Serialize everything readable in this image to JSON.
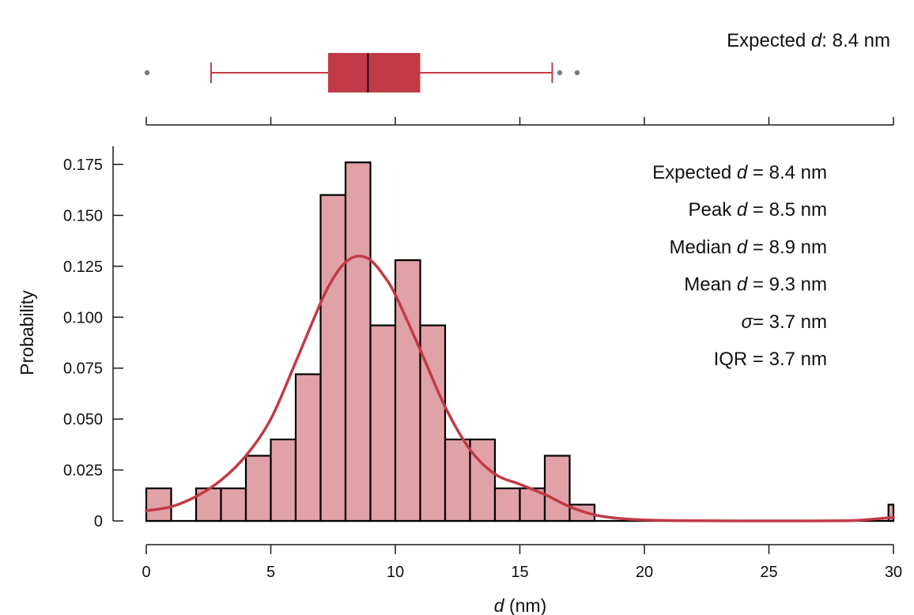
{
  "colors": {
    "accent": "#c23a47",
    "bar_fill": "#e0a1a7",
    "outlier": "#7a7a7a"
  },
  "chart_data": [
    {
      "type": "box",
      "orientation": "horizontal",
      "stats": {
        "whisker_low": 2.6,
        "q1": 7.3,
        "median": 8.9,
        "q3": 11.0,
        "whisker_high": 16.3
      },
      "outliers": [
        0.0,
        16.6,
        17.3
      ],
      "annotation": {
        "label": "Expected",
        "variable": "d",
        "value": ": 8.4 nm"
      },
      "xlim": [
        0,
        30
      ],
      "xticks": [
        0,
        5,
        10,
        15,
        20,
        25,
        30
      ]
    },
    {
      "type": "bar",
      "subtype": "histogram_with_kde",
      "xlabel_var": "d",
      "xlabel_unit": " (nm)",
      "ylabel": "Probability",
      "xlim": [
        0,
        30
      ],
      "ylim": [
        0,
        0.18
      ],
      "xticks": [
        "0",
        "5",
        "10",
        "15",
        "20",
        "25",
        "30"
      ],
      "yticks": [
        "0",
        "0.025",
        "0.050",
        "0.075",
        "0.100",
        "0.125",
        "0.150",
        "0.175"
      ],
      "bin_width": 1,
      "bins": [
        {
          "x": 0,
          "value": 0.016
        },
        {
          "x": 1,
          "value": 0
        },
        {
          "x": 2,
          "value": 0.016
        },
        {
          "x": 3,
          "value": 0.016
        },
        {
          "x": 4,
          "value": 0.032
        },
        {
          "x": 5,
          "value": 0.04
        },
        {
          "x": 6,
          "value": 0.072
        },
        {
          "x": 7,
          "value": 0.16
        },
        {
          "x": 8,
          "value": 0.176
        },
        {
          "x": 9,
          "value": 0.096
        },
        {
          "x": 10,
          "value": 0.128
        },
        {
          "x": 11,
          "value": 0.096
        },
        {
          "x": 12,
          "value": 0.04
        },
        {
          "x": 13,
          "value": 0.04
        },
        {
          "x": 14,
          "value": 0.016
        },
        {
          "x": 15,
          "value": 0.016
        },
        {
          "x": 16,
          "value": 0.032
        },
        {
          "x": 17,
          "value": 0.008
        },
        {
          "x": 29.8,
          "value": 0.008,
          "width": 0.2
        }
      ],
      "kde": {
        "x": [
          0,
          1,
          2,
          3,
          4,
          5,
          6,
          7,
          7.5,
          8,
          8.5,
          9,
          9.5,
          10,
          11,
          12,
          13,
          14,
          15,
          16,
          17,
          18,
          19,
          20,
          22,
          25,
          28,
          29,
          30
        ],
        "y": [
          0.005,
          0.007,
          0.012,
          0.02,
          0.032,
          0.05,
          0.078,
          0.107,
          0.119,
          0.127,
          0.13,
          0.128,
          0.121,
          0.111,
          0.084,
          0.056,
          0.035,
          0.023,
          0.018,
          0.013,
          0.007,
          0.003,
          0.0012,
          0.0005,
          0.0001,
          0,
          0.0001,
          0.0007,
          0.0018
        ]
      },
      "stats_text": [
        {
          "label": "Expected",
          "var": "d",
          "value": " = 8.4 nm"
        },
        {
          "label": "Peak",
          "var": "d",
          "value": " = 8.5 nm"
        },
        {
          "label": "Median",
          "var": "d",
          "value": " = 8.9 nm"
        },
        {
          "label": "Mean",
          "var": "d",
          "value": " = 9.3 nm"
        },
        {
          "label": "",
          "var": "σ",
          "value": "= 3.7 nm"
        },
        {
          "label": "IQR",
          "var": "",
          "value": " = 3.7 nm"
        }
      ]
    }
  ]
}
